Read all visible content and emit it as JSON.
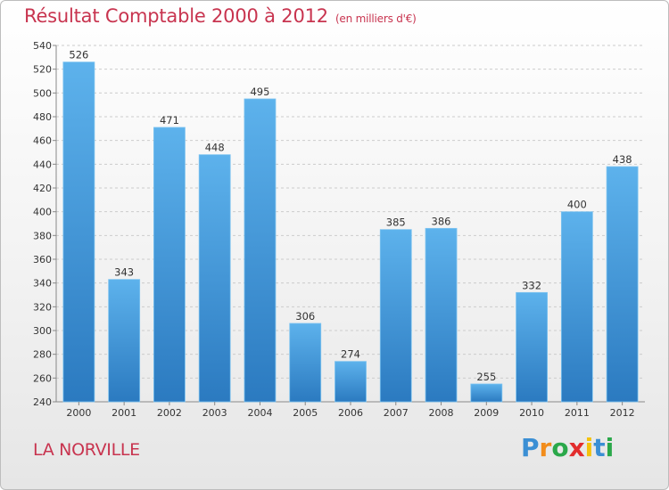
{
  "header": {
    "title": "Résultat Comptable 2000 à 2012",
    "subtitle": "(en milliers d'€)"
  },
  "footer": {
    "city": "LA NORVILLE",
    "logo_letters": [
      "P",
      "r",
      "o",
      "x",
      "i",
      "t",
      "i"
    ],
    "logo_colors": [
      "#3b8fd4",
      "#f28c1b",
      "#2aa84a",
      "#e22d2d",
      "#f4c20d",
      "#3b8fd4",
      "#2aa84a"
    ]
  },
  "colors": {
    "title": "#c8344f",
    "bar_light": "#5db2ec",
    "bar_dark": "#2b7ac0",
    "grid": "#cccccc"
  },
  "chart_data": {
    "type": "bar",
    "title": "Résultat Comptable 2000 à 2012",
    "subtitle": "(en milliers d'€)",
    "categories": [
      "2000",
      "2001",
      "2002",
      "2003",
      "2004",
      "2005",
      "2006",
      "2007",
      "2008",
      "2009",
      "2010",
      "2011",
      "2012"
    ],
    "values": [
      526,
      343,
      471,
      448,
      495,
      306,
      274,
      385,
      386,
      255,
      332,
      400,
      438
    ],
    "ylim": [
      240,
      540
    ],
    "yticks": [
      240,
      260,
      280,
      300,
      320,
      340,
      360,
      380,
      400,
      420,
      440,
      460,
      480,
      500,
      520,
      540
    ],
    "xlabel": "",
    "ylabel": "",
    "grid": true
  }
}
